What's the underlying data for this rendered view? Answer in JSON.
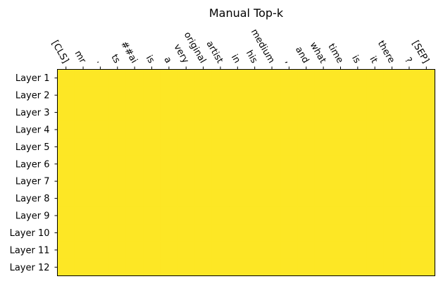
{
  "chart_data": {
    "type": "heatmap",
    "title": "Manual Top-k",
    "xlabel": "",
    "ylabel": "",
    "x_tick_position": "top",
    "grid": false,
    "colorbar": false,
    "x_categories": [
      "[CLS]",
      "mr",
      ".",
      "ts",
      "##ai",
      "is",
      "a",
      "very",
      "original",
      "artist",
      "in",
      "his",
      "medium",
      ",",
      "and",
      "what",
      "time",
      "is",
      "it",
      "there",
      "?",
      "[SEP]"
    ],
    "y_categories": [
      "Layer 1",
      "Layer 2",
      "Layer 3",
      "Layer 4",
      "Layer 5",
      "Layer 6",
      "Layer 7",
      "Layer 8",
      "Layer 9",
      "Layer 10",
      "Layer 11",
      "Layer 12"
    ],
    "values": [
      [
        1,
        1,
        1,
        1,
        1,
        1,
        1,
        1,
        1,
        1,
        1,
        1,
        1,
        1,
        1,
        1,
        1,
        1,
        1,
        1,
        1,
        1
      ],
      [
        1,
        1,
        1,
        1,
        1,
        1,
        1,
        1,
        1,
        1,
        1,
        1,
        1,
        1,
        1,
        1,
        1,
        1,
        1,
        1,
        1,
        1
      ],
      [
        1,
        1,
        1,
        1,
        1,
        1,
        1,
        1,
        1,
        1,
        1,
        1,
        1,
        1,
        1,
        1,
        1,
        1,
        1,
        1,
        1,
        1
      ],
      [
        1,
        1,
        1,
        1,
        1,
        1,
        1,
        1,
        1,
        1,
        1,
        1,
        1,
        1,
        1,
        1,
        1,
        1,
        1,
        1,
        1,
        1
      ],
      [
        1,
        1,
        1,
        1,
        1,
        1,
        1,
        1,
        1,
        1,
        1,
        1,
        1,
        1,
        1,
        1,
        1,
        1,
        1,
        1,
        1,
        1
      ],
      [
        1,
        1,
        1,
        1,
        1,
        1,
        1,
        1,
        1,
        1,
        1,
        1,
        1,
        1,
        1,
        1,
        1,
        1,
        1,
        1,
        1,
        1
      ],
      [
        1,
        1,
        1,
        1,
        1,
        1,
        1,
        1,
        1,
        1,
        1,
        1,
        1,
        1,
        1,
        1,
        1,
        1,
        1,
        1,
        1,
        1
      ],
      [
        1,
        1,
        1,
        1,
        1,
        1,
        1,
        1,
        1,
        1,
        1,
        1,
        1,
        1,
        1,
        1,
        1,
        1,
        1,
        1,
        1,
        1
      ],
      [
        1,
        1,
        1,
        1,
        1,
        1,
        1,
        1,
        1,
        1,
        1,
        1,
        1,
        1,
        1,
        1,
        1,
        1,
        1,
        1,
        1,
        1
      ],
      [
        1,
        1,
        1,
        1,
        1,
        1,
        1,
        1,
        1,
        1,
        1,
        1,
        1,
        1,
        1,
        1,
        1,
        1,
        1,
        1,
        1,
        1
      ],
      [
        1,
        1,
        1,
        1,
        1,
        1,
        1,
        1,
        1,
        1,
        1,
        1,
        1,
        1,
        1,
        1,
        1,
        1,
        1,
        1,
        1,
        1
      ],
      [
        1,
        1,
        1,
        1,
        1,
        1,
        1,
        1,
        1,
        1,
        1,
        1,
        1,
        1,
        1,
        1,
        1,
        1,
        1,
        1,
        1,
        1
      ]
    ],
    "colors": {
      "cell": "#fde725",
      "frame": "#000000",
      "text": "#000000"
    }
  }
}
